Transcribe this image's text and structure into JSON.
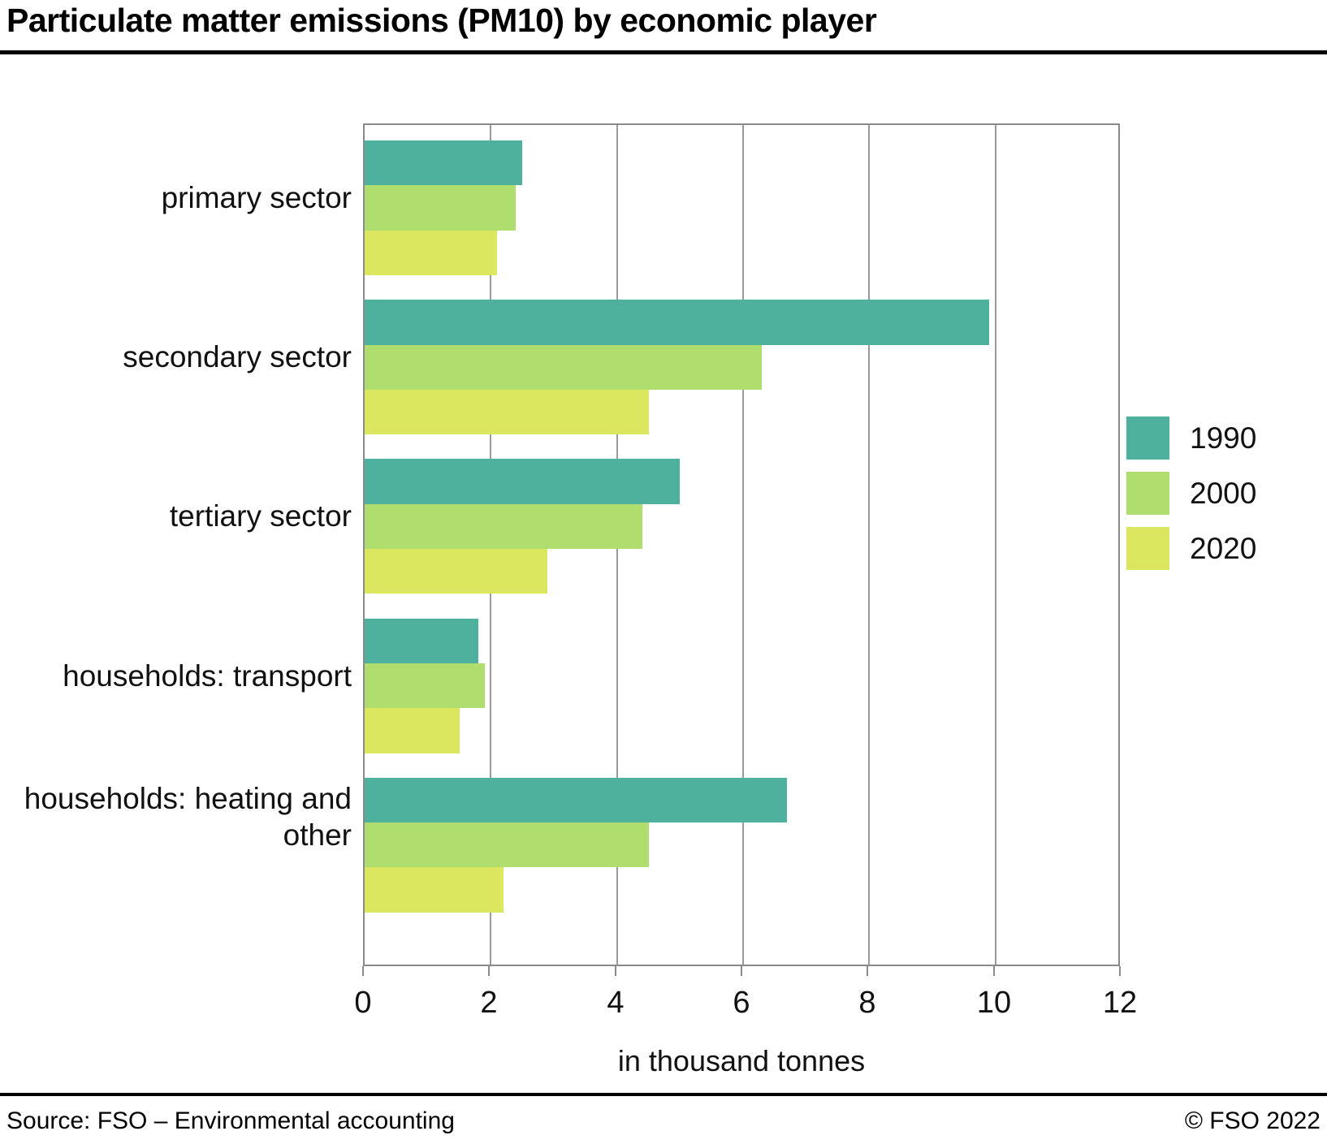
{
  "page": {
    "title": "Particulate matter emissions (PM10) by economic player",
    "source": "Source: FSO – Environmental accounting",
    "copyright": "© FSO 2022"
  },
  "chart_data": {
    "type": "bar",
    "orientation": "horizontal",
    "title": "Particulate matter emissions (PM10) by economic player",
    "xlabel": "in thousand tonnes",
    "ylabel": "",
    "xlim": [
      0,
      12
    ],
    "xticks": [
      "0",
      "2",
      "4",
      "6",
      "8",
      "10",
      "12"
    ],
    "grid": true,
    "legend_position": "right",
    "categories": [
      "primary sector",
      "secondary sector",
      "tertiary sector",
      "households: transport",
      "households: heating and other"
    ],
    "series": [
      {
        "name": "1990",
        "color": "#4DB19E",
        "values": [
          2.5,
          9.9,
          5.0,
          1.8,
          6.7
        ]
      },
      {
        "name": "2000",
        "color": "#AFDD6E",
        "values": [
          2.4,
          6.3,
          4.4,
          1.9,
          4.5
        ]
      },
      {
        "name": "2020",
        "color": "#DBE85F",
        "values": [
          2.1,
          4.5,
          2.9,
          1.5,
          2.2
        ]
      }
    ]
  }
}
